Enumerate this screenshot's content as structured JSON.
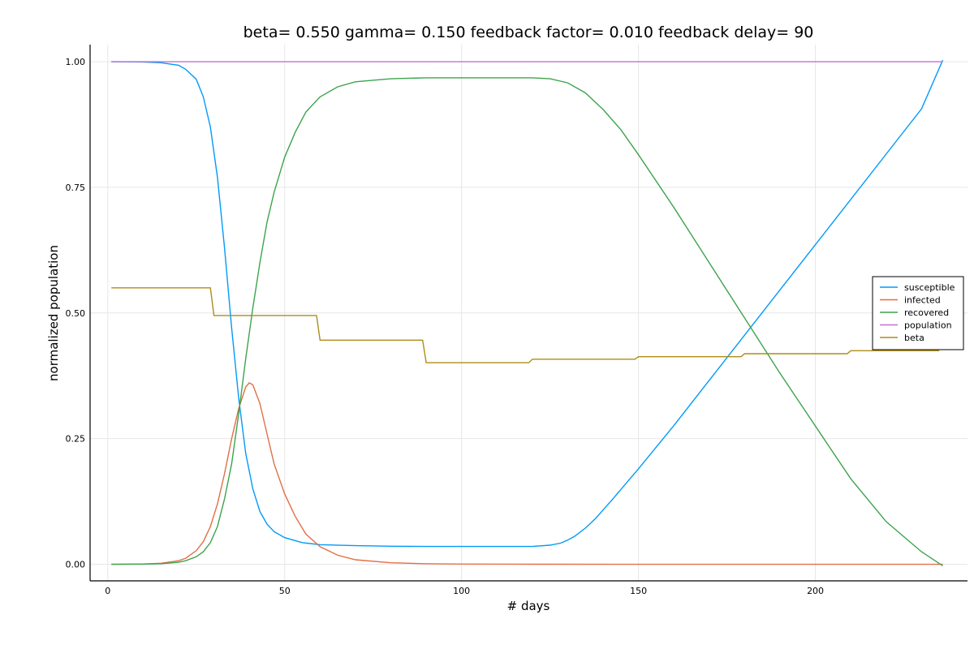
{
  "chart_data": {
    "type": "line",
    "title": "beta= 0.550 gamma= 0.150 feedback factor= 0.010 feedback delay= 90",
    "xlabel": "# days",
    "ylabel": "normalized population",
    "xlim": [
      -5,
      243
    ],
    "ylim": [
      -0.033,
      1.034
    ],
    "xticks": [
      0,
      50,
      100,
      150,
      200
    ],
    "xtick_labels": [
      "0",
      "50",
      "100",
      "150",
      "200"
    ],
    "yticks": [
      0,
      0.25,
      0.5,
      0.75,
      1.0
    ],
    "ytick_labels": [
      "0.00",
      "0.25",
      "0.50",
      "0.75",
      "1.00"
    ],
    "grid": true,
    "legend_position": "right",
    "series": [
      {
        "name": "susceptible",
        "color": "#009af9",
        "x": [
          1,
          10,
          15,
          20,
          22,
          25,
          27,
          29,
          31,
          33,
          35,
          37,
          39,
          41,
          43,
          45,
          47,
          50,
          55,
          60,
          70,
          80,
          90,
          100,
          110,
          120,
          125,
          128,
          130,
          132,
          135,
          138,
          140,
          143,
          146,
          150,
          160,
          170,
          180,
          190,
          200,
          210,
          220,
          230,
          236
        ],
        "y": [
          1.0,
          0.9995,
          0.998,
          0.993,
          0.985,
          0.965,
          0.93,
          0.87,
          0.77,
          0.63,
          0.47,
          0.33,
          0.22,
          0.15,
          0.105,
          0.08,
          0.065,
          0.053,
          0.043,
          0.039,
          0.037,
          0.036,
          0.0355,
          0.0355,
          0.0355,
          0.0355,
          0.038,
          0.042,
          0.048,
          0.056,
          0.072,
          0.092,
          0.108,
          0.132,
          0.157,
          0.19,
          0.276,
          0.366,
          0.456,
          0.546,
          0.636,
          0.726,
          0.816,
          0.906,
          1.003
        ]
      },
      {
        "name": "infected",
        "color": "#e26f46",
        "x": [
          1,
          10,
          15,
          20,
          22,
          25,
          27,
          29,
          31,
          33,
          35,
          37,
          39,
          40,
          41,
          43,
          45,
          47,
          50,
          53,
          56,
          60,
          65,
          70,
          80,
          90,
          100,
          120,
          150,
          200,
          236
        ],
        "y": [
          0.0,
          0.0005,
          0.002,
          0.007,
          0.012,
          0.027,
          0.045,
          0.075,
          0.12,
          0.18,
          0.25,
          0.31,
          0.353,
          0.361,
          0.357,
          0.32,
          0.26,
          0.2,
          0.14,
          0.095,
          0.06,
          0.035,
          0.018,
          0.009,
          0.003,
          0.001,
          0.0004,
          0.0001,
          0.0,
          0.0,
          0.0
        ]
      },
      {
        "name": "recovered",
        "color": "#3da44d",
        "x": [
          1,
          10,
          15,
          20,
          22,
          25,
          27,
          29,
          31,
          33,
          35,
          37,
          39,
          41,
          43,
          45,
          47,
          50,
          53,
          56,
          60,
          65,
          70,
          80,
          90,
          100,
          110,
          120,
          125,
          130,
          135,
          140,
          145,
          150,
          160,
          170,
          180,
          190,
          200,
          210,
          220,
          230,
          236
        ],
        "y": [
          0.0,
          0.0003,
          0.001,
          0.004,
          0.007,
          0.015,
          0.025,
          0.043,
          0.075,
          0.13,
          0.2,
          0.3,
          0.41,
          0.51,
          0.6,
          0.68,
          0.74,
          0.81,
          0.86,
          0.9,
          0.93,
          0.95,
          0.96,
          0.966,
          0.968,
          0.968,
          0.968,
          0.968,
          0.966,
          0.958,
          0.938,
          0.905,
          0.865,
          0.815,
          0.71,
          0.6,
          0.49,
          0.38,
          0.275,
          0.17,
          0.085,
          0.025,
          -0.003
        ]
      },
      {
        "name": "population",
        "color": "#c271d2",
        "x": [
          1,
          236
        ],
        "y": [
          1.0,
          1.0
        ]
      },
      {
        "name": "beta",
        "color": "#ac8d18",
        "x": [
          1,
          29,
          30,
          59,
          60,
          89,
          90,
          119,
          120,
          149,
          150,
          179,
          180,
          209,
          210,
          235
        ],
        "y": [
          0.55,
          0.55,
          0.495,
          0.495,
          0.446,
          0.446,
          0.401,
          0.401,
          0.408,
          0.408,
          0.413,
          0.413,
          0.419,
          0.419,
          0.425,
          0.425
        ]
      }
    ]
  }
}
